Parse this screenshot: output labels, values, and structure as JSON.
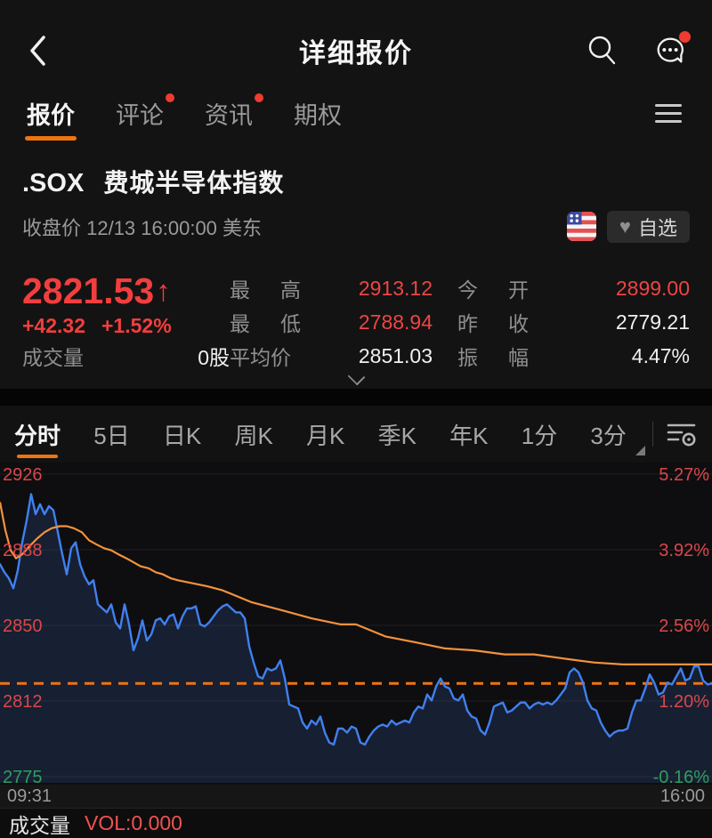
{
  "header": {
    "title": "详细报价",
    "icons": [
      "back-icon",
      "search-icon",
      "chat-bubble-icon"
    ]
  },
  "tabs": [
    {
      "label": "报价",
      "active": true,
      "dot": false
    },
    {
      "label": "评论",
      "active": false,
      "dot": true
    },
    {
      "label": "资讯",
      "active": false,
      "dot": true
    },
    {
      "label": "期权",
      "active": false,
      "dot": false
    }
  ],
  "stock": {
    "symbol": ".SOX",
    "name": "费城半导体指数",
    "status_line": "收盘价 12/13 16:00:00 美东",
    "flag": "us-flag",
    "watchlist_label": "自选",
    "watchlist_icon": "heart-icon"
  },
  "quote": {
    "price": "2821.53",
    "arrow": "↑",
    "change": "+42.32",
    "change_pct": "+1.52%",
    "volume_label": "成交量",
    "volume_value": "0股",
    "stats": [
      {
        "label": "最高",
        "value": "2913.12",
        "color": "red"
      },
      {
        "label": "最低",
        "value": "2788.94",
        "color": "red"
      },
      {
        "label": "平均价",
        "value": "2851.03",
        "color": "white"
      },
      {
        "label": "今开",
        "value": "2899.00",
        "color": "red"
      },
      {
        "label": "昨收",
        "value": "2779.21",
        "color": "white"
      },
      {
        "label": "振幅",
        "value": "4.47%",
        "color": "white"
      }
    ]
  },
  "chart_tabs": [
    "分时",
    "5日",
    "日K",
    "周K",
    "月K",
    "季K",
    "年K",
    "1分",
    "3分"
  ],
  "chart_tabs_icon": "indicator-settings-icon",
  "colors": {
    "up_red": "#f23e3e",
    "axis_red": "#d9474b",
    "down_green": "#2f9e5f",
    "accent_orange": "#ee7412",
    "avg_orange": "#f5923c",
    "line_blue": "#4080f0",
    "area_fill": "rgba(58,100,190,0.20)"
  },
  "chart_data": {
    "type": "line",
    "title": "分时 (intraday) .SOX",
    "x_axis": {
      "start": "09:31",
      "end": "16:00"
    },
    "y_axis": {
      "left_labels": [
        "2926",
        "2888",
        "2850",
        "2812",
        "2775"
      ],
      "right_labels": [
        "5.27%",
        "3.92%",
        "2.56%",
        "1.20%",
        "-0.16%"
      ],
      "label_colors": [
        "red",
        "red",
        "red",
        "red",
        "green"
      ],
      "top_value": 2926,
      "bottom_value": 2775
    },
    "prev_close": 2779.21,
    "close_line_value": 2821.53,
    "series": [
      {
        "name": "price",
        "x_step": 5,
        "values": [
          2881,
          2877,
          2874,
          2869,
          2878,
          2892,
          2903,
          2916,
          2906,
          2911,
          2906,
          2910,
          2908,
          2897,
          2886,
          2876,
          2889,
          2892,
          2881,
          2875,
          2871,
          2873,
          2861,
          2859,
          2857,
          2861,
          2852,
          2849,
          2861,
          2851,
          2838,
          2844,
          2853,
          2843,
          2846,
          2853,
          2854,
          2851,
          2855,
          2856,
          2849,
          2855,
          2859,
          2859,
          2860,
          2851,
          2850,
          2852,
          2855,
          2858,
          2860,
          2861,
          2859,
          2857,
          2857,
          2854,
          2840,
          2832,
          2825,
          2824,
          2829,
          2828,
          2829,
          2833,
          2824,
          2811,
          2810,
          2809,
          2802,
          2799,
          2803,
          2801,
          2805,
          2797,
          2792,
          2791,
          2799,
          2799,
          2797,
          2800,
          2799,
          2792,
          2791,
          2795,
          2798,
          2800,
          2801,
          2800,
          2803,
          2801,
          2802,
          2803,
          2802,
          2807,
          2810,
          2809,
          2816,
          2813,
          2820,
          2824,
          2820,
          2819,
          2814,
          2813,
          2816,
          2808,
          2805,
          2804,
          2798,
          2796,
          2802,
          2810,
          2811,
          2812,
          2807,
          2808,
          2810,
          2812,
          2812,
          2809,
          2811,
          2812,
          2811,
          2812,
          2811,
          2813,
          2816,
          2819,
          2827,
          2829,
          2827,
          2822,
          2813,
          2809,
          2808,
          2802,
          2798,
          2795,
          2797,
          2798,
          2798,
          2799,
          2807,
          2813,
          2813,
          2819,
          2826,
          2822,
          2816,
          2817,
          2822,
          2821,
          2825,
          2829,
          2823,
          2824,
          2830,
          2830,
          2823,
          2821,
          2821.53
        ]
      },
      {
        "name": "avg_price",
        "points": [
          [
            0,
            2912
          ],
          [
            6,
            2898
          ],
          [
            12,
            2888
          ],
          [
            18,
            2884
          ],
          [
            25,
            2886
          ],
          [
            33,
            2890
          ],
          [
            42,
            2894
          ],
          [
            50,
            2897
          ],
          [
            58,
            2899
          ],
          [
            67,
            2900
          ],
          [
            75,
            2900
          ],
          [
            83,
            2899
          ],
          [
            92,
            2897
          ],
          [
            100,
            2893
          ],
          [
            108,
            2891
          ],
          [
            117,
            2889
          ],
          [
            125,
            2888
          ],
          [
            133,
            2886
          ],
          [
            142,
            2884
          ],
          [
            150,
            2882
          ],
          [
            158,
            2880
          ],
          [
            167,
            2879
          ],
          [
            175,
            2877
          ],
          [
            183,
            2876
          ],
          [
            192,
            2874
          ],
          [
            200,
            2873
          ],
          [
            233,
            2870
          ],
          [
            250,
            2868
          ],
          [
            283,
            2862
          ],
          [
            317,
            2858
          ],
          [
            350,
            2854
          ],
          [
            383,
            2851
          ],
          [
            400,
            2851
          ],
          [
            433,
            2845
          ],
          [
            467,
            2842
          ],
          [
            500,
            2839
          ],
          [
            533,
            2838
          ],
          [
            567,
            2836
          ],
          [
            600,
            2836
          ],
          [
            633,
            2834
          ],
          [
            667,
            2832
          ],
          [
            700,
            2831
          ],
          [
            733,
            2831
          ],
          [
            767,
            2831
          ],
          [
            800,
            2831
          ]
        ]
      }
    ]
  },
  "footer": {
    "time_start": "09:31",
    "time_end": "16:00",
    "volume_label": "成交量",
    "vol_text": "VOL:0.000"
  }
}
